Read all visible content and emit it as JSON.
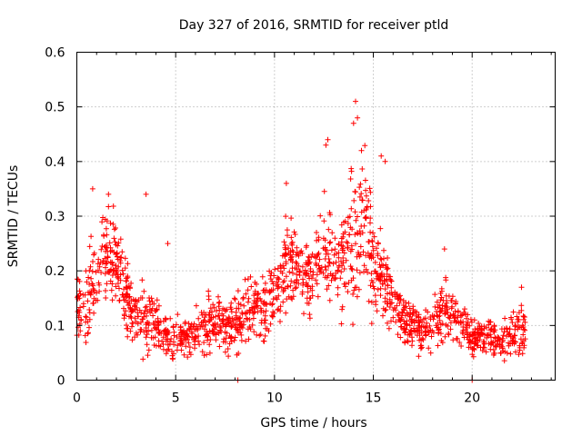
{
  "chart_data": {
    "type": "scatter",
    "title": "Day 327 of 2016, SRMTID for receiver ptld",
    "xlabel": "GPS time / hours",
    "ylabel": "SRMTID / TECUs",
    "xlim": [
      0,
      24.2
    ],
    "ylim": [
      0,
      0.6
    ],
    "grid": true,
    "marker": "+",
    "color": "#ff0000",
    "x_ticks": [
      0,
      5,
      10,
      15,
      20
    ],
    "y_ticks": [
      0,
      0.1,
      0.2,
      0.3,
      0.4,
      0.5,
      0.6
    ],
    "x_tick_labels": [
      "0",
      "5",
      "10",
      "15",
      "20"
    ],
    "y_tick_labels": [
      "0",
      "0.1",
      "0.2",
      "0.3",
      "0.4",
      "0.5",
      "0.6"
    ],
    "profile": {
      "x": [
        0.0,
        0.3,
        0.7,
        1.0,
        1.3,
        1.7,
        2.0,
        2.4,
        2.8,
        3.2,
        3.5,
        3.8,
        4.2,
        4.6,
        5.0,
        5.5,
        6.0,
        6.5,
        7.0,
        7.5,
        8.0,
        8.5,
        9.0,
        9.5,
        10.0,
        10.5,
        11.0,
        11.5,
        12.0,
        12.5,
        13.0,
        13.5,
        14.0,
        14.3,
        14.7,
        15.0,
        15.5,
        16.0,
        16.5,
        17.0,
        17.5,
        18.0,
        18.5,
        19.0,
        19.5,
        20.0,
        20.5,
        21.0,
        21.5,
        22.0,
        22.7
      ],
      "center": [
        0.14,
        0.12,
        0.18,
        0.19,
        0.23,
        0.24,
        0.21,
        0.17,
        0.12,
        0.11,
        0.12,
        0.11,
        0.09,
        0.08,
        0.085,
        0.08,
        0.09,
        0.1,
        0.11,
        0.1,
        0.1,
        0.12,
        0.13,
        0.13,
        0.16,
        0.2,
        0.21,
        0.19,
        0.19,
        0.23,
        0.21,
        0.22,
        0.26,
        0.3,
        0.25,
        0.22,
        0.18,
        0.14,
        0.11,
        0.1,
        0.09,
        0.1,
        0.12,
        0.13,
        0.1,
        0.08,
        0.08,
        0.08,
        0.075,
        0.08,
        0.1
      ],
      "spread": [
        0.05,
        0.05,
        0.07,
        0.07,
        0.08,
        0.08,
        0.07,
        0.06,
        0.04,
        0.04,
        0.07,
        0.04,
        0.04,
        0.04,
        0.035,
        0.035,
        0.035,
        0.04,
        0.04,
        0.04,
        0.04,
        0.05,
        0.05,
        0.05,
        0.06,
        0.07,
        0.07,
        0.06,
        0.07,
        0.08,
        0.08,
        0.08,
        0.12,
        0.12,
        0.1,
        0.1,
        0.07,
        0.04,
        0.035,
        0.035,
        0.03,
        0.035,
        0.05,
        0.05,
        0.035,
        0.03,
        0.03,
        0.03,
        0.03,
        0.035,
        0.04
      ]
    },
    "points_per_hour": 72,
    "x_max_data": 22.7,
    "peaks": [
      {
        "x": 0.8,
        "y": 0.35
      },
      {
        "x": 1.6,
        "y": 0.34
      },
      {
        "x": 3.5,
        "y": 0.34
      },
      {
        "x": 4.6,
        "y": 0.25
      },
      {
        "x": 10.6,
        "y": 0.36
      },
      {
        "x": 12.6,
        "y": 0.43
      },
      {
        "x": 12.7,
        "y": 0.44
      },
      {
        "x": 14.0,
        "y": 0.47
      },
      {
        "x": 14.1,
        "y": 0.51
      },
      {
        "x": 14.2,
        "y": 0.48
      },
      {
        "x": 14.4,
        "y": 0.42
      },
      {
        "x": 15.4,
        "y": 0.41
      },
      {
        "x": 15.6,
        "y": 0.4
      },
      {
        "x": 18.6,
        "y": 0.24
      },
      {
        "x": 22.5,
        "y": 0.17
      },
      {
        "x": 8.15,
        "y": 0.0
      },
      {
        "x": 20.0,
        "y": 0.0
      }
    ]
  }
}
